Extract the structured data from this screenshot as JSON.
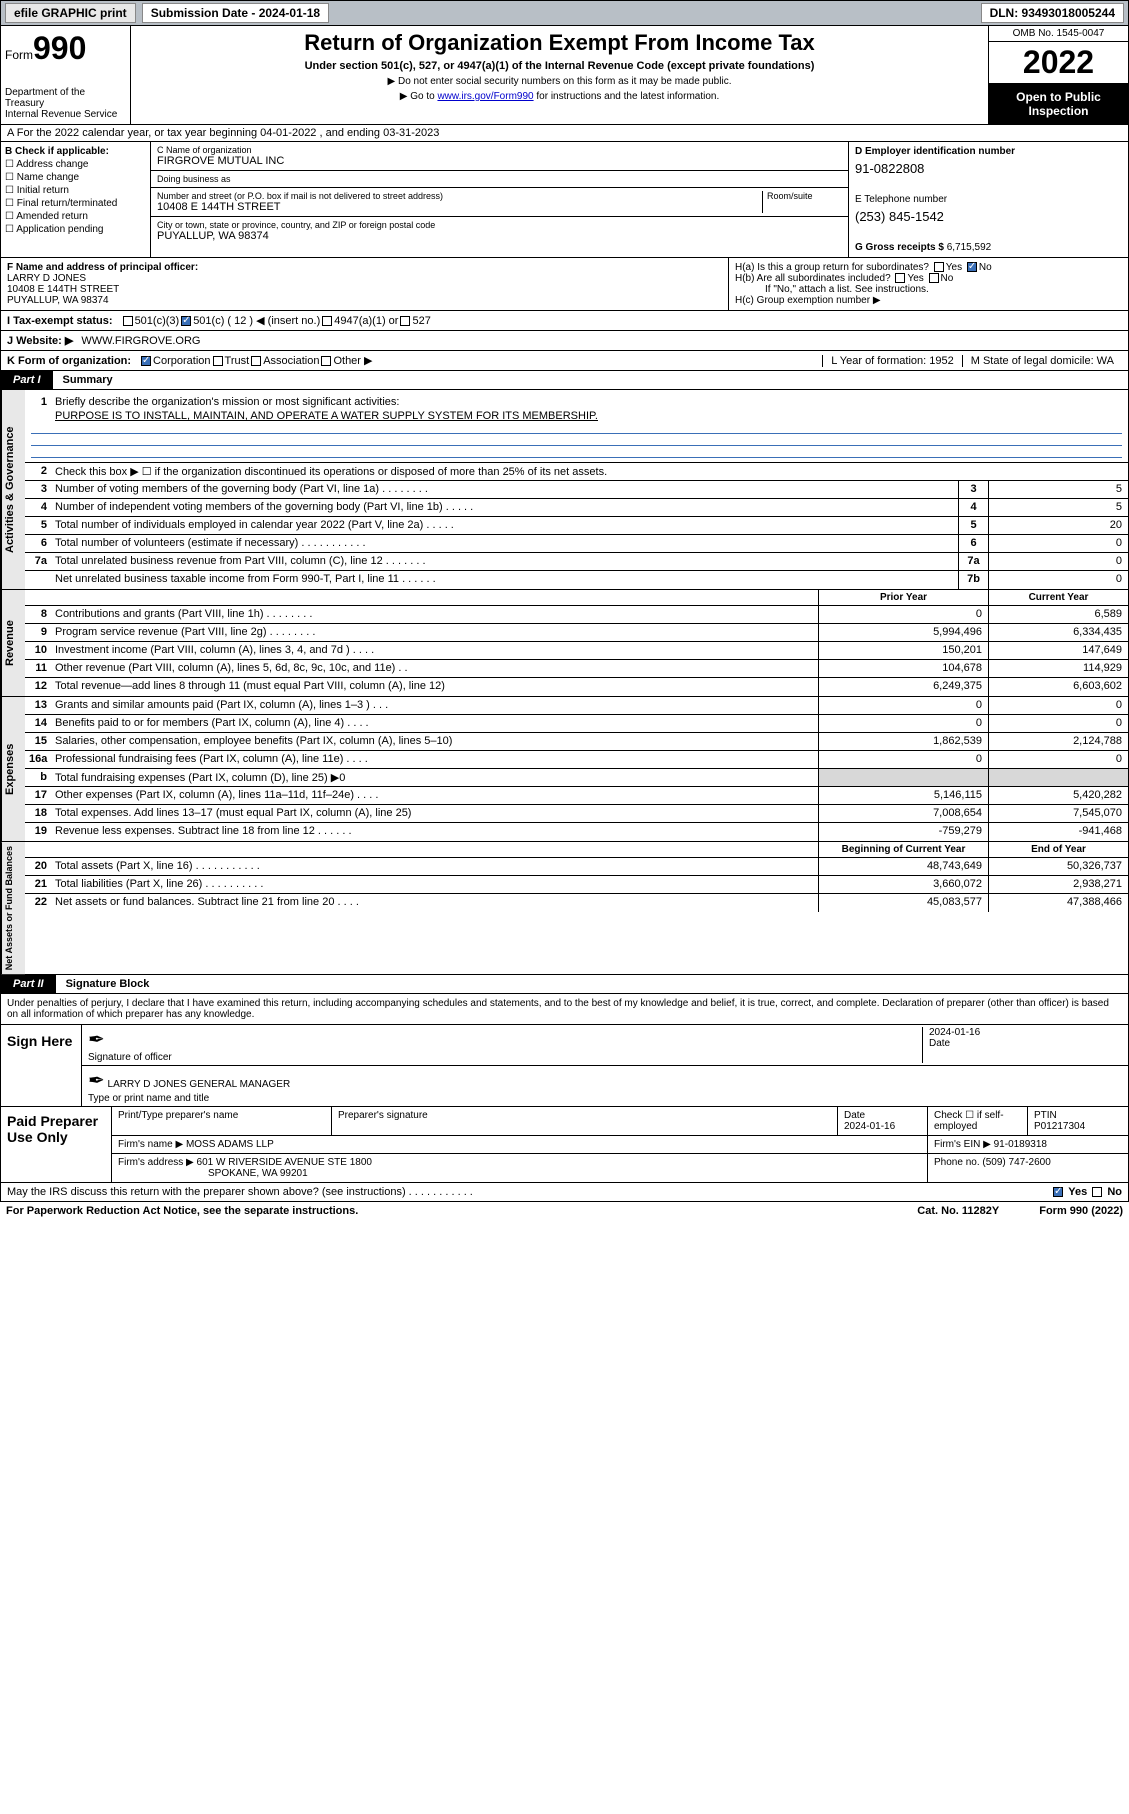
{
  "topbar": {
    "efile": "efile GRAPHIC print",
    "submission_label": "Submission Date - 2024-01-18",
    "dln": "DLN: 93493018005244"
  },
  "header": {
    "form_label": "Form",
    "form_number": "990",
    "dept": "Department of the Treasury",
    "irs": "Internal Revenue Service",
    "title": "Return of Organization Exempt From Income Tax",
    "subtitle": "Under section 501(c), 527, or 4947(a)(1) of the Internal Revenue Code (except private foundations)",
    "note1": "▶ Do not enter social security numbers on this form as it may be made public.",
    "note2_prefix": "▶ Go to ",
    "note2_link": "www.irs.gov/Form990",
    "note2_suffix": " for instructions and the latest information.",
    "omb": "OMB No. 1545-0047",
    "year": "2022",
    "inspect": "Open to Public Inspection"
  },
  "row_a": "A For the 2022 calendar year, or tax year beginning 04-01-2022  , and ending 03-31-2023",
  "col_b": {
    "title": "B Check if applicable:",
    "opts": [
      "Address change",
      "Name change",
      "Initial return",
      "Final return/terminated",
      "Amended return",
      "Application pending"
    ]
  },
  "col_c": {
    "name_label": "C Name of organization",
    "name": "FIRGROVE MUTUAL INC",
    "dba_label": "Doing business as",
    "dba": "",
    "addr_label": "Number and street (or P.O. box if mail is not delivered to street address)",
    "room_label": "Room/suite",
    "addr": "10408 E 144TH STREET",
    "city_label": "City or town, state or province, country, and ZIP or foreign postal code",
    "city": "PUYALLUP, WA  98374"
  },
  "col_d": {
    "ein_label": "D Employer identification number",
    "ein": "91-0822808",
    "tel_label": "E Telephone number",
    "tel": "(253) 845-1542",
    "gross_label": "G Gross receipts $",
    "gross": "6,715,592"
  },
  "row_f": {
    "label": "F Name and address of principal officer:",
    "name": "LARRY D JONES",
    "addr1": "10408 E 144TH STREET",
    "addr2": "PUYALLUP, WA  98374"
  },
  "row_h": {
    "ha": "H(a)  Is this a group return for subordinates?",
    "ha_ans": "No",
    "hb": "H(b)  Are all subordinates included?",
    "hb_note": "If \"No,\" attach a list. See instructions.",
    "hc": "H(c)  Group exemption number ▶"
  },
  "row_i": {
    "label": "I  Tax-exempt status:",
    "c12": "501(c) ( 12 ) ◀ (insert no.)"
  },
  "row_j": {
    "label": "J  Website: ▶",
    "val": "WWW.FIRGROVE.ORG"
  },
  "row_k": {
    "label": "K Form of organization:",
    "corp": "Corporation",
    "trust": "Trust",
    "assoc": "Association",
    "other": "Other ▶"
  },
  "row_l": {
    "l": "L Year of formation: 1952",
    "m": "M State of legal domicile: WA"
  },
  "part1": {
    "tag": "Part I",
    "title": "Summary"
  },
  "summary": {
    "q1": "Briefly describe the organization's mission or most significant activities:",
    "mission": "PURPOSE IS TO INSTALL, MAINTAIN, AND OPERATE A WATER SUPPLY SYSTEM FOR ITS MEMBERSHIP.",
    "q2": "Check this box ▶ ☐  if the organization discontinued its operations or disposed of more than 25% of its net assets.",
    "rows_gov": [
      {
        "n": "3",
        "d": "Number of voting members of the governing body (Part VI, line 1a)  .   .   .   .   .   .   .   .",
        "box": "3",
        "v": "5"
      },
      {
        "n": "4",
        "d": "Number of independent voting members of the governing body (Part VI, line 1b)  .   .   .   .   .",
        "box": "4",
        "v": "5"
      },
      {
        "n": "5",
        "d": "Total number of individuals employed in calendar year 2022 (Part V, line 2a)  .   .   .   .   .",
        "box": "5",
        "v": "20"
      },
      {
        "n": "6",
        "d": "Total number of volunteers (estimate if necessary)  .   .   .   .   .   .   .   .   .   .   .",
        "box": "6",
        "v": "0"
      },
      {
        "n": "7a",
        "d": "Total unrelated business revenue from Part VIII, column (C), line 12  .   .   .   .   .   .   .",
        "box": "7a",
        "v": "0"
      },
      {
        "n": "",
        "d": "Net unrelated business taxable income from Form 990-T, Part I, line 11  .   .   .   .   .   .",
        "box": "7b",
        "v": "0"
      }
    ],
    "hdr_prior": "Prior Year",
    "hdr_curr": "Current Year",
    "rows_rev": [
      {
        "n": "8",
        "d": "Contributions and grants (Part VIII, line 1h)  .   .   .   .   .   .   .   .",
        "p": "0",
        "c": "6,589"
      },
      {
        "n": "9",
        "d": "Program service revenue (Part VIII, line 2g)  .   .   .   .   .   .   .   .",
        "p": "5,994,496",
        "c": "6,334,435"
      },
      {
        "n": "10",
        "d": "Investment income (Part VIII, column (A), lines 3, 4, and 7d )  .   .   .   .",
        "p": "150,201",
        "c": "147,649"
      },
      {
        "n": "11",
        "d": "Other revenue (Part VIII, column (A), lines 5, 6d, 8c, 9c, 10c, and 11e)  .   .",
        "p": "104,678",
        "c": "114,929"
      },
      {
        "n": "12",
        "d": "Total revenue—add lines 8 through 11 (must equal Part VIII, column (A), line 12)",
        "p": "6,249,375",
        "c": "6,603,602"
      }
    ],
    "rows_exp": [
      {
        "n": "13",
        "d": "Grants and similar amounts paid (Part IX, column (A), lines 1–3 )  .   .   .",
        "p": "0",
        "c": "0"
      },
      {
        "n": "14",
        "d": "Benefits paid to or for members (Part IX, column (A), line 4)  .   .   .   .",
        "p": "0",
        "c": "0"
      },
      {
        "n": "15",
        "d": "Salaries, other compensation, employee benefits (Part IX, column (A), lines 5–10)",
        "p": "1,862,539",
        "c": "2,124,788"
      },
      {
        "n": "16a",
        "d": "Professional fundraising fees (Part IX, column (A), line 11e)  .   .   .   .",
        "p": "0",
        "c": "0"
      },
      {
        "n": "b",
        "d": "Total fundraising expenses (Part IX, column (D), line 25) ▶0",
        "p": "",
        "c": "",
        "shade": true
      },
      {
        "n": "17",
        "d": "Other expenses (Part IX, column (A), lines 11a–11d, 11f–24e)  .   .   .   .",
        "p": "5,146,115",
        "c": "5,420,282"
      },
      {
        "n": "18",
        "d": "Total expenses. Add lines 13–17 (must equal Part IX, column (A), line 25)",
        "p": "7,008,654",
        "c": "7,545,070"
      },
      {
        "n": "19",
        "d": "Revenue less expenses. Subtract line 18 from line 12  .   .   .   .   .   .",
        "p": "-759,279",
        "c": "-941,468"
      }
    ],
    "hdr_begin": "Beginning of Current Year",
    "hdr_end": "End of Year",
    "rows_net": [
      {
        "n": "20",
        "d": "Total assets (Part X, line 16)  .   .   .   .   .   .   .   .   .   .   .",
        "p": "48,743,649",
        "c": "50,326,737"
      },
      {
        "n": "21",
        "d": "Total liabilities (Part X, line 26)  .   .   .   .   .   .   .   .   .   .",
        "p": "3,660,072",
        "c": "2,938,271"
      },
      {
        "n": "22",
        "d": "Net assets or fund balances. Subtract line 21 from line 20  .   .   .   .",
        "p": "45,083,577",
        "c": "47,388,466"
      }
    ]
  },
  "side_labels": {
    "gov": "Activities & Governance",
    "rev": "Revenue",
    "exp": "Expenses",
    "net": "Net Assets or Fund Balances"
  },
  "part2": {
    "tag": "Part II",
    "title": "Signature Block"
  },
  "sig": {
    "decl": "Under penalties of perjury, I declare that I have examined this return, including accompanying schedules and statements, and to the best of my knowledge and belief, it is true, correct, and complete. Declaration of preparer (other than officer) is based on all information of which preparer has any knowledge.",
    "sign_here": "Sign Here",
    "sig_officer": "Signature of officer",
    "date": "2024-01-16",
    "date_lbl": "Date",
    "name": "LARRY D JONES  GENERAL MANAGER",
    "name_lbl": "Type or print name and title"
  },
  "prep": {
    "title": "Paid Preparer Use Only",
    "h_name": "Print/Type preparer's name",
    "h_sig": "Preparer's signature",
    "h_date": "Date",
    "date": "2024-01-16",
    "h_check": "Check ☐ if self-employed",
    "h_ptin": "PTIN",
    "ptin": "P01217304",
    "firm_lbl": "Firm's name    ▶",
    "firm": "MOSS ADAMS LLP",
    "ein_lbl": "Firm's EIN ▶",
    "ein": "91-0189318",
    "addr_lbl": "Firm's address ▶",
    "addr1": "601 W RIVERSIDE AVENUE STE 1800",
    "addr2": "SPOKANE, WA  99201",
    "phone_lbl": "Phone no.",
    "phone": "(509) 747-2600"
  },
  "footer": {
    "discuss": "May the IRS discuss this return with the preparer shown above? (see instructions)  .   .   .   .   .   .   .   .   .   .   .",
    "yes": "Yes",
    "no": "No",
    "paperwork": "For Paperwork Reduction Act Notice, see the separate instructions.",
    "cat": "Cat. No. 11282Y",
    "form": "Form 990 (2022)"
  }
}
